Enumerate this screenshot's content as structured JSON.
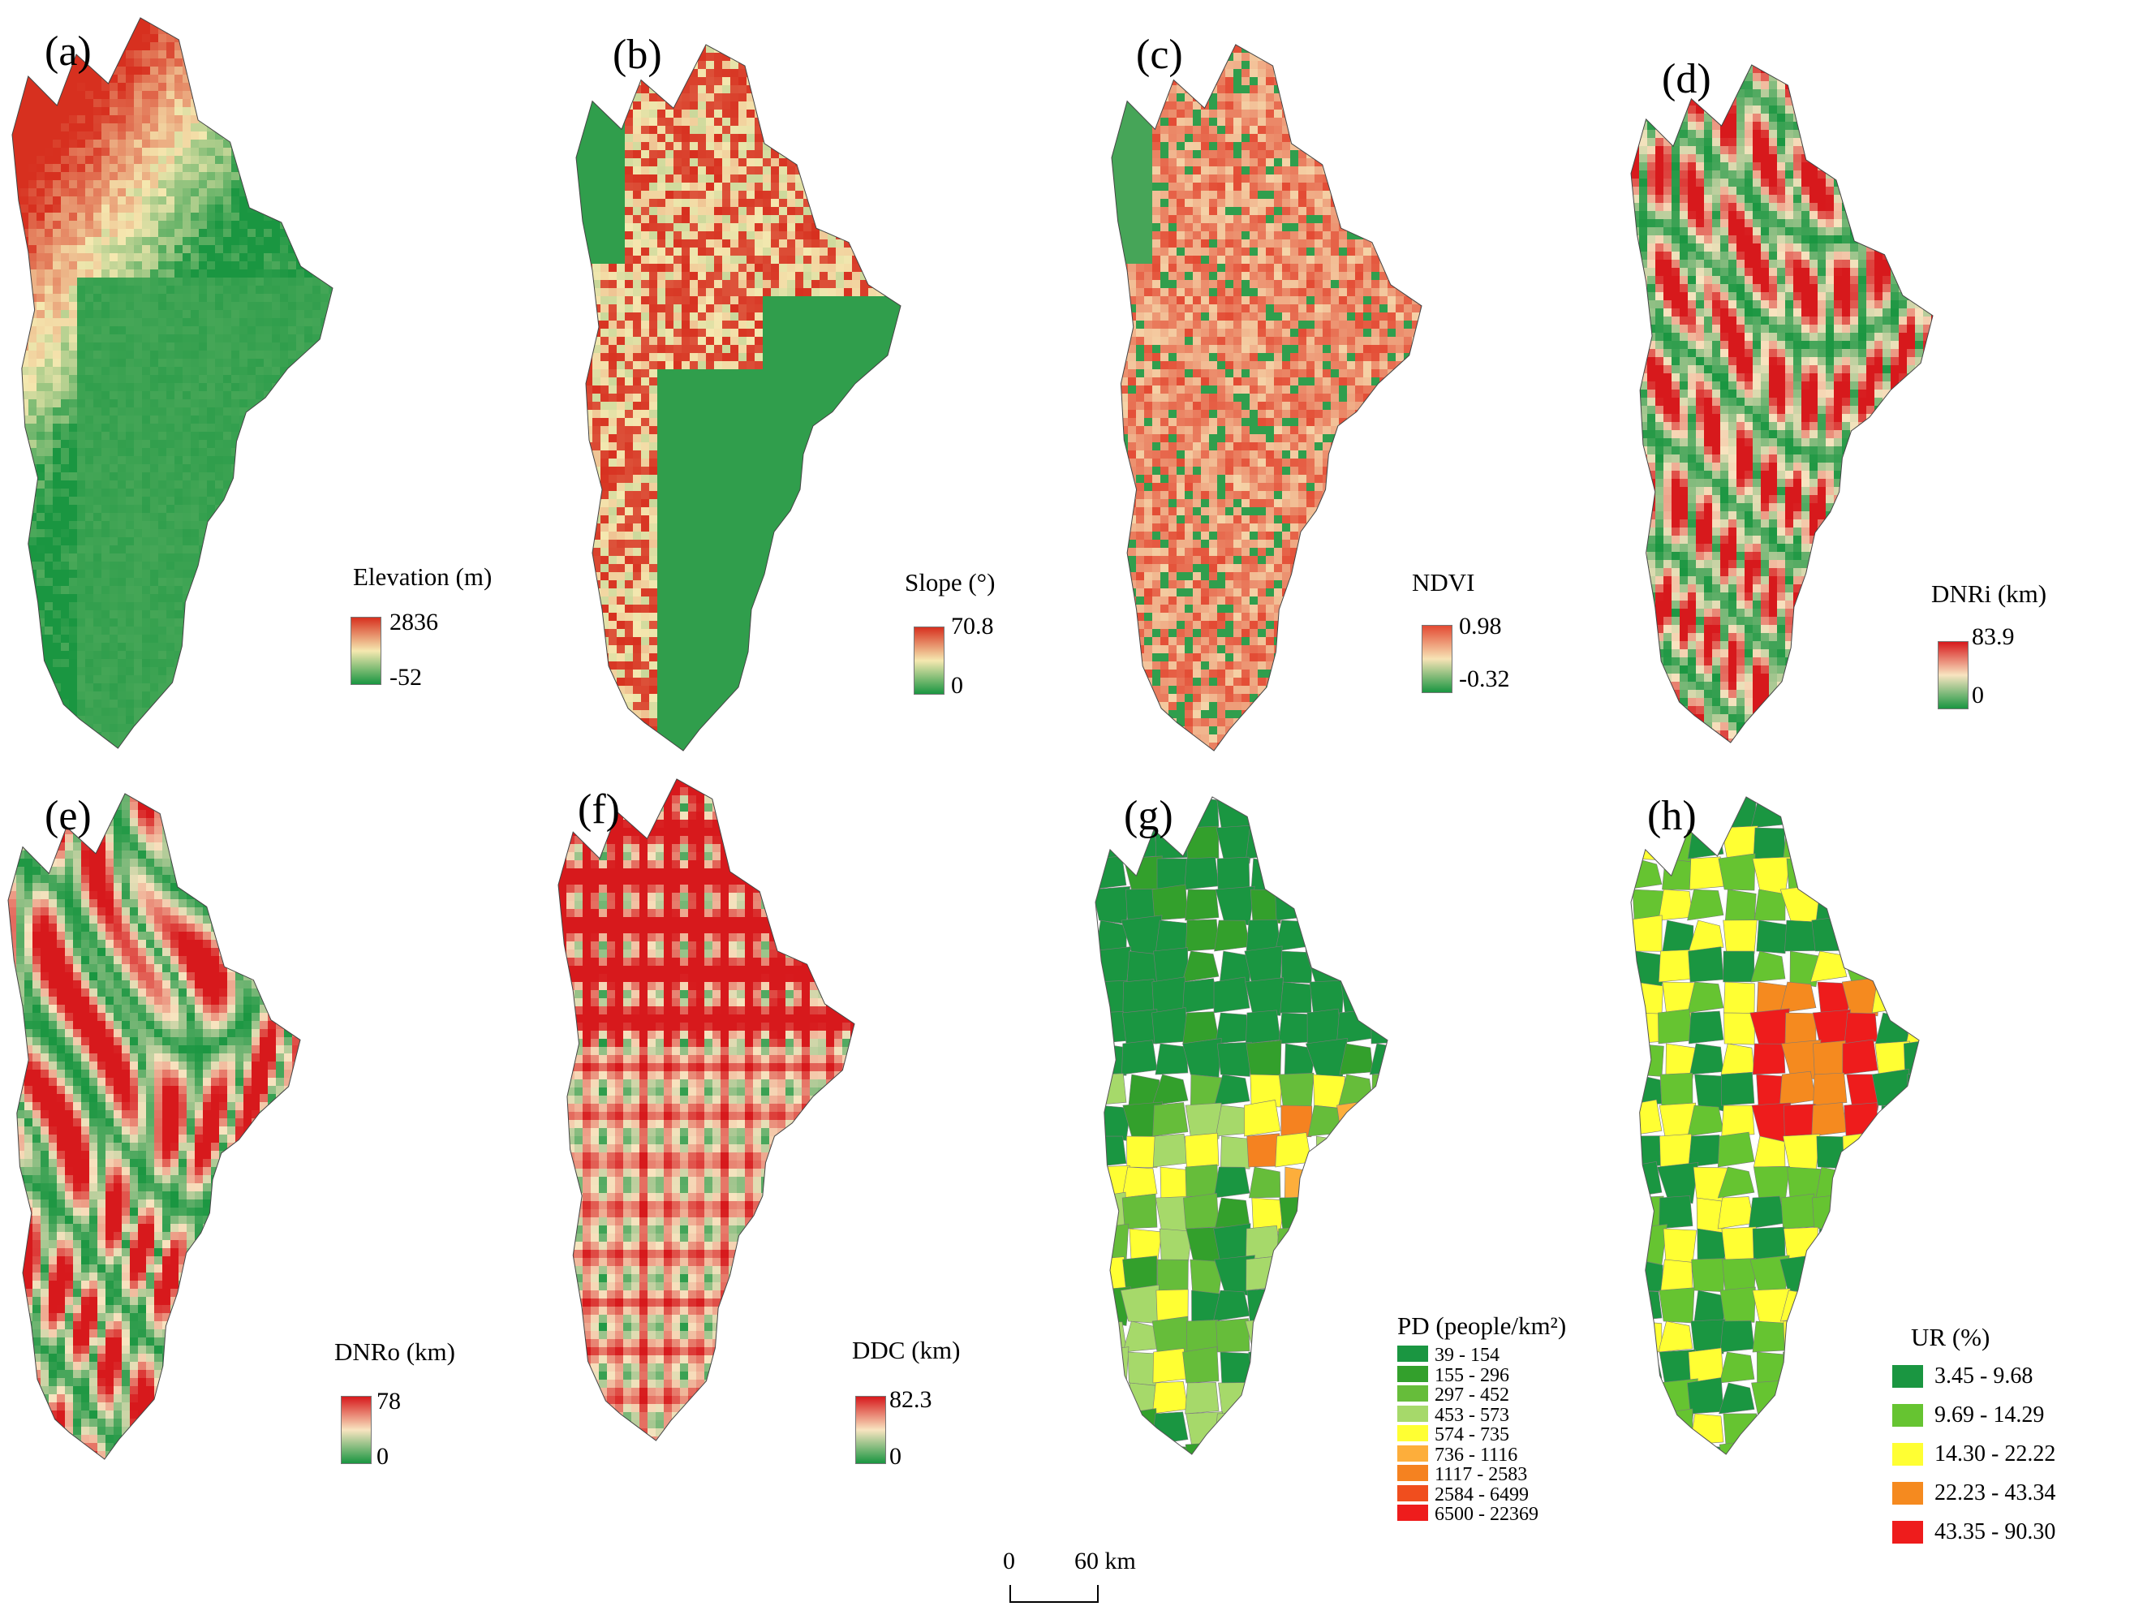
{
  "panels": [
    {
      "id": "a",
      "letter": "(a)",
      "legend_title": "Elevation (m)",
      "max": "2836",
      "min": "-52",
      "type": "ramp",
      "colors": {
        "high": "#d7301f",
        "mid": "#f5e8b0",
        "low": "#1a9641"
      },
      "seed": 11
    },
    {
      "id": "b",
      "letter": "(b)",
      "legend_title": "Slope (°)",
      "max": "70.8",
      "min": "0",
      "type": "ramp",
      "colors": {
        "high": "#d7301f",
        "mid": "#f5e8b0",
        "low": "#1a9641"
      },
      "seed": 23
    },
    {
      "id": "c",
      "letter": "(c)",
      "legend_title": "NDVI",
      "max": "0.98",
      "min": "-0.32",
      "type": "ramp",
      "colors": {
        "high": "#e34a33",
        "mid": "#f7e3b5",
        "low": "#1a9641"
      },
      "seed": 37
    },
    {
      "id": "d",
      "letter": "(d)",
      "legend_title": "DNRi (km)",
      "max": "83.9",
      "min": "0",
      "type": "ramp",
      "colors": {
        "high": "#d7191c",
        "mid": "#f8e4c0",
        "low": "#1a9641"
      },
      "seed": 41
    },
    {
      "id": "e",
      "letter": "(e)",
      "legend_title": "DNRo (km)",
      "max": "78",
      "min": "0",
      "type": "ramp",
      "colors": {
        "high": "#d7191c",
        "mid": "#f8e4c0",
        "low": "#1a9641"
      },
      "seed": 53
    },
    {
      "id": "f",
      "letter": "(f)",
      "legend_title": "DDC (km)",
      "max": "82.3",
      "min": "0",
      "type": "ramp",
      "colors": {
        "high": "#d7191c",
        "mid": "#f8e4c0",
        "low": "#1a9641"
      },
      "seed": 67
    },
    {
      "id": "g",
      "letter": "(g)",
      "legend_title": "PD (people/km²)",
      "type": "classes",
      "seed": 71,
      "classes": [
        {
          "label": "39 - 154",
          "color": "#1a9641"
        },
        {
          "label": "155 - 296",
          "color": "#33a02c"
        },
        {
          "label": "297 - 452",
          "color": "#66bd3a"
        },
        {
          "label": "453 - 573",
          "color": "#a6d96a"
        },
        {
          "label": "574 - 735",
          "color": "#ffff33"
        },
        {
          "label": "736 - 1116",
          "color": "#fdae3b"
        },
        {
          "label": "1117 - 2583",
          "color": "#f58220"
        },
        {
          "label": "2584 - 6499",
          "color": "#f04e1e"
        },
        {
          "label": "6500 - 22369",
          "color": "#ee1c1c"
        }
      ]
    },
    {
      "id": "h",
      "letter": "(h)",
      "legend_title": "UR (%)",
      "type": "classes",
      "seed": 89,
      "classes": [
        {
          "label": "3.45 - 9.68",
          "color": "#1a9641"
        },
        {
          "label": "9.69 - 14.29",
          "color": "#66c431"
        },
        {
          "label": "14.30 - 22.22",
          "color": "#ffff33"
        },
        {
          "label": "22.23 - 43.34",
          "color": "#f58a1f"
        },
        {
          "label": "43.35 - 90.30",
          "color": "#ee1c1c"
        }
      ]
    }
  ],
  "scale_bar": {
    "zero": "0",
    "distance": "60 km"
  }
}
